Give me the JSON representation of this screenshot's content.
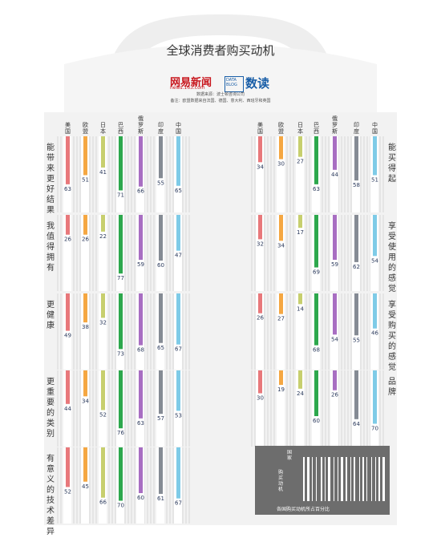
{
  "title": "全球消费者购买动机",
  "brand": {
    "netease_logo": "网易新闻",
    "netease_domain": "news.163.com",
    "data_blog_logo": "DATA BLOG",
    "shudu": "数读"
  },
  "source": "数据来源：波士顿咨询公司",
  "note": "备注：欧盟数据来自法国、德国、意大利、西班牙和英国",
  "barcode": {
    "label_country": "国家",
    "label_motive": "购买动机",
    "label_percent": "各国购买动机所占百分比"
  },
  "colors": {
    "美国": "#e8787b",
    "欧盟": "#f5a742",
    "日本": "#c7cf6e",
    "巴西": "#2da84d",
    "俄罗斯": "#a86ec2",
    "印度": "#858b94",
    "中国": "#7ecbe7"
  },
  "chart_data": {
    "type": "bar",
    "title": "全球消费者购买动机",
    "countries": [
      "美国",
      "欧盟",
      "日本",
      "巴西",
      "俄罗斯",
      "印度",
      "中国"
    ],
    "panels": [
      {
        "name": "能带来更好结果",
        "values": [
          63,
          51,
          41,
          71,
          66,
          55,
          65
        ]
      },
      {
        "name": "我值得拥有",
        "values": [
          26,
          26,
          22,
          77,
          59,
          60,
          47
        ]
      },
      {
        "name": "更健康",
        "values": [
          49,
          38,
          32,
          73,
          68,
          65,
          67
        ]
      },
      {
        "name": "更重要的类别",
        "values": [
          44,
          34,
          52,
          76,
          63,
          57,
          53
        ]
      },
      {
        "name": "有意义的技术差异",
        "values": [
          52,
          45,
          66,
          70,
          60,
          61,
          67
        ]
      },
      {
        "name": "能买得起",
        "values": [
          34,
          30,
          27,
          63,
          44,
          58,
          51
        ]
      },
      {
        "name": "享受使用的感觉",
        "values": [
          32,
          34,
          17,
          69,
          59,
          62,
          54
        ]
      },
      {
        "name": "享受购买的感觉",
        "values": [
          26,
          27,
          14,
          68,
          54,
          55,
          46
        ]
      },
      {
        "name": "品牌",
        "values": [
          30,
          19,
          24,
          60,
          26,
          64,
          70
        ]
      }
    ]
  }
}
